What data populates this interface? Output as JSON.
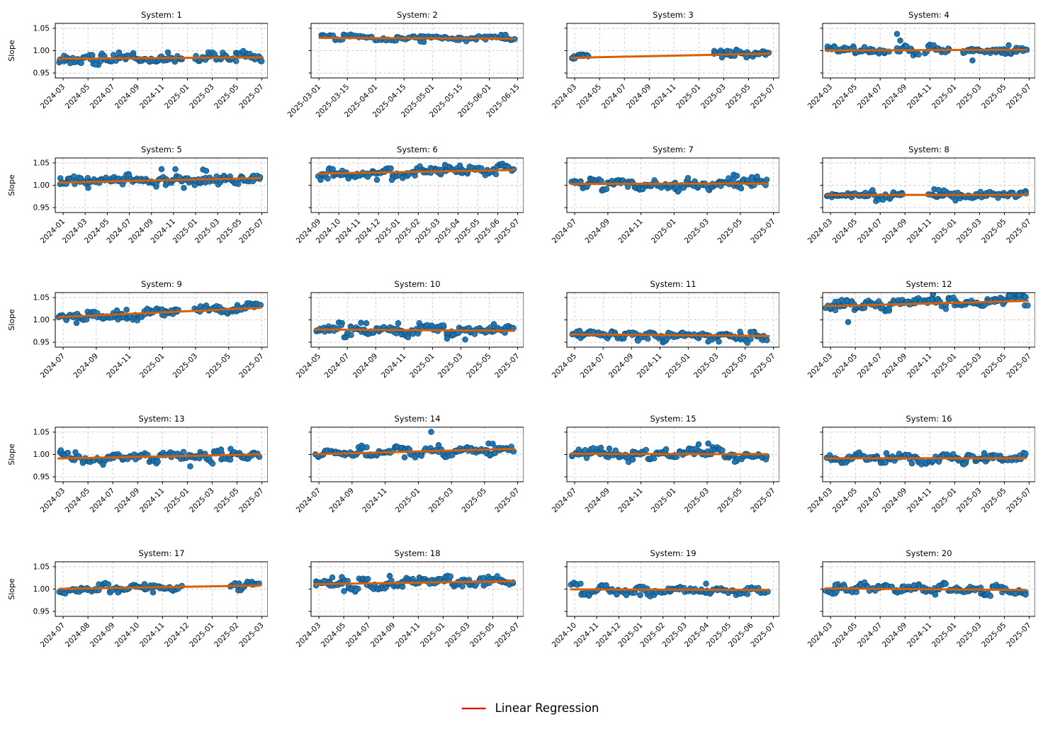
{
  "figure": {
    "ylabel": "Slope",
    "y_ticks": [
      0.95,
      1.0,
      1.05
    ],
    "ylim": [
      0.939,
      1.061
    ],
    "grid": true,
    "colors": {
      "scatter_fill": "#2077b4",
      "scatter_edge": "#0e4a73",
      "regression_line": "#d95f02",
      "legend_line": "#e50000",
      "grid_line": "#c9c9c9",
      "axis": "#000000",
      "text": "#000000",
      "background": "#ffffff"
    }
  },
  "legend": {
    "label": "Linear Regression"
  },
  "chart_data": [
    {
      "type": "scatter",
      "title": "System: 1",
      "x_ticks": [
        "2024-03",
        "2024-05",
        "2024-07",
        "2024-09",
        "2024-11",
        "2025-01",
        "2025-03",
        "2025-05",
        "2025-07"
      ],
      "regression": {
        "x0": 0.015,
        "y0": 0.982,
        "x1": 0.975,
        "y1": 0.985
      },
      "scatter": {
        "n": 150,
        "std": 0.0055,
        "segments": [
          [
            0.015,
            0.6
          ],
          [
            0.655,
            0.975
          ]
        ],
        "outliers": [
          [
            0.3,
            0.996
          ],
          [
            0.53,
            0.996
          ],
          [
            0.07,
            0.972
          ],
          [
            0.19,
            0.969
          ]
        ]
      }
    },
    {
      "type": "scatter",
      "title": "System: 2",
      "x_ticks": [
        "2025-03-01",
        "2025-03-15",
        "2025-04-01",
        "2025-04-15",
        "2025-05-01",
        "2025-05-15",
        "2025-06-01",
        "2025-06-15"
      ],
      "regression": {
        "x0": 0.04,
        "y0": 1.0285,
        "x1": 0.955,
        "y1": 1.027
      },
      "scatter": {
        "n": 95,
        "std": 0.003,
        "segments": [
          [
            0.04,
            0.965
          ]
        ],
        "outliers": [
          [
            0.895,
            1.0355
          ],
          [
            0.915,
            1.0355
          ],
          [
            0.515,
            1.0205
          ],
          [
            0.53,
            1.0195
          ]
        ]
      }
    },
    {
      "type": "scatter",
      "title": "System: 3",
      "x_ticks": [
        "2024-03",
        "2024-05",
        "2024-07",
        "2024-09",
        "2024-11",
        "2025-01",
        "2025-03",
        "2025-05",
        "2025-07"
      ],
      "regression": {
        "x0": 0.02,
        "y0": 0.984,
        "x1": 0.955,
        "y1": 0.9935
      },
      "scatter": {
        "n": 58,
        "std": 0.0035,
        "segments": [
          [
            0.02,
            0.105
          ],
          [
            0.69,
            0.955
          ]
        ],
        "outliers": [
          [
            0.755,
            0.9995
          ],
          [
            0.77,
            0.998
          ],
          [
            0.73,
            0.985
          ],
          [
            0.845,
            0.985
          ]
        ]
      }
    },
    {
      "type": "scatter",
      "title": "System: 4",
      "x_ticks": [
        "2024-03",
        "2024-05",
        "2024-07",
        "2024-09",
        "2024-11",
        "2025-01",
        "2025-03",
        "2025-05",
        "2025-07"
      ],
      "regression": {
        "x0": 0.015,
        "y0": 1.0005,
        "x1": 0.955,
        "y1": 1.002
      },
      "scatter": {
        "n": 125,
        "std": 0.005,
        "segments": [
          [
            0.015,
            0.31
          ],
          [
            0.345,
            0.45
          ],
          [
            0.48,
            0.6
          ],
          [
            0.655,
            0.965
          ]
        ],
        "outliers": [
          [
            0.35,
            1.0375
          ],
          [
            0.365,
            1.0225
          ],
          [
            0.705,
            0.978
          ],
          [
            0.875,
            1.012
          ]
        ]
      }
    },
    {
      "type": "scatter",
      "title": "System: 5",
      "x_ticks": [
        "2024-01",
        "2024-03",
        "2024-05",
        "2024-07",
        "2024-09",
        "2024-11",
        "2025-01",
        "2025-03",
        "2025-05",
        "2025-07"
      ],
      "regression": {
        "x0": 0.02,
        "y0": 1.006,
        "x1": 0.965,
        "y1": 1.016
      },
      "scatter": {
        "n": 155,
        "std": 0.0062,
        "segments": [
          [
            0.02,
            0.965
          ]
        ],
        "outliers": [
          [
            0.5,
            1.036
          ],
          [
            0.565,
            1.036
          ],
          [
            0.695,
            1.035
          ],
          [
            0.71,
            1.032
          ],
          [
            0.155,
            0.994
          ],
          [
            0.605,
            0.994
          ]
        ]
      }
    },
    {
      "type": "scatter",
      "title": "System: 6",
      "x_ticks": [
        "2024-09",
        "2024-10",
        "2024-11",
        "2024-12",
        "2025-01",
        "2025-02",
        "2025-03",
        "2025-04",
        "2025-05",
        "2025-06",
        "2025-07"
      ],
      "regression": {
        "x0": 0.035,
        "y0": 1.026,
        "x1": 0.955,
        "y1": 1.034
      },
      "scatter": {
        "n": 150,
        "std": 0.0055,
        "segments": [
          [
            0.035,
            0.955
          ]
        ],
        "outliers": [
          [
            0.045,
            1.012
          ],
          [
            0.63,
            1.0455
          ],
          [
            0.7,
            1.044
          ],
          [
            0.31,
            1.012
          ],
          [
            0.38,
            1.012
          ]
        ]
      }
    },
    {
      "type": "scatter",
      "title": "System: 7",
      "x_ticks": [
        "2024-07",
        "2024-09",
        "2024-11",
        "2025-01",
        "2025-03",
        "2025-05",
        "2025-07"
      ],
      "regression": {
        "x0": 0.02,
        "y0": 1.003,
        "x1": 0.945,
        "y1": 1.004
      },
      "scatter": {
        "n": 150,
        "std": 0.0055,
        "segments": [
          [
            0.02,
            0.945
          ]
        ],
        "outliers": [
          [
            0.785,
            1.0235
          ],
          [
            0.8,
            1.021
          ],
          [
            0.87,
            1.018
          ],
          [
            0.895,
            1.0195
          ],
          [
            0.57,
            1.016
          ],
          [
            0.82,
            0.993
          ]
        ]
      }
    },
    {
      "type": "scatter",
      "title": "System: 8",
      "x_ticks": [
        "2024-03",
        "2024-05",
        "2024-07",
        "2024-09",
        "2024-11",
        "2025-01",
        "2025-03",
        "2025-05",
        "2025-07"
      ],
      "regression": {
        "x0": 0.02,
        "y0": 0.9785,
        "x1": 0.965,
        "y1": 0.9785
      },
      "scatter": {
        "n": 130,
        "std": 0.0048,
        "segments": [
          [
            0.02,
            0.385
          ],
          [
            0.5,
            0.965
          ]
        ],
        "outliers": [
          [
            0.525,
            0.991
          ],
          [
            0.545,
            0.9895
          ],
          [
            0.57,
            0.9885
          ],
          [
            0.625,
            0.966
          ],
          [
            0.235,
            0.989
          ]
        ]
      }
    },
    {
      "type": "scatter",
      "title": "System: 9",
      "x_ticks": [
        "2024-07",
        "2024-09",
        "2024-11",
        "2025-01",
        "2025-03",
        "2025-05",
        "2025-07"
      ],
      "regression": {
        "x0": 0.015,
        "y0": 1.006,
        "x1": 0.965,
        "y1": 1.027
      },
      "scatter": {
        "n": 145,
        "std": 0.0048,
        "segments": [
          [
            0.015,
            0.585
          ],
          [
            0.655,
            0.965
          ]
        ],
        "outliers": [
          [
            0.29,
            1.021
          ],
          [
            0.335,
            1.0225
          ],
          [
            0.435,
            1.021
          ],
          [
            0.545,
            1.021
          ],
          [
            0.1,
            0.993
          ]
        ]
      }
    },
    {
      "type": "scatter",
      "title": "System: 10",
      "x_ticks": [
        "2024-05",
        "2024-07",
        "2024-09",
        "2024-11",
        "2025-01",
        "2025-03",
        "2025-05",
        "2025-07"
      ],
      "regression": {
        "x0": 0.02,
        "y0": 0.9785,
        "x1": 0.955,
        "y1": 0.9755
      },
      "scatter": {
        "n": 150,
        "std": 0.0055,
        "segments": [
          [
            0.02,
            0.955
          ]
        ],
        "outliers": [
          [
            0.235,
            0.9935
          ],
          [
            0.26,
            0.9925
          ],
          [
            0.41,
            0.9925
          ],
          [
            0.64,
            0.958
          ],
          [
            0.725,
            0.956
          ],
          [
            0.86,
            0.9905
          ]
        ]
      }
    },
    {
      "type": "scatter",
      "title": "System: 11",
      "x_ticks": [
        "2024-05",
        "2024-07",
        "2024-09",
        "2024-11",
        "2025-01",
        "2025-03",
        "2025-05",
        "2025-07"
      ],
      "regression": {
        "x0": 0.02,
        "y0": 0.9675,
        "x1": 0.95,
        "y1": 0.964
      },
      "scatter": {
        "n": 140,
        "std": 0.0048,
        "segments": [
          [
            0.02,
            0.95
          ]
        ],
        "outliers": [
          [
            0.06,
            0.9755
          ],
          [
            0.665,
            0.9515
          ],
          [
            0.715,
            0.9515
          ],
          [
            0.335,
            0.9535
          ],
          [
            0.815,
            0.9735
          ],
          [
            0.875,
            0.972
          ]
        ]
      }
    },
    {
      "type": "scatter",
      "title": "System: 12",
      "x_ticks": [
        "2024-03",
        "2024-05",
        "2024-07",
        "2024-09",
        "2024-11",
        "2025-01",
        "2025-03",
        "2025-05",
        "2025-07"
      ],
      "regression": {
        "x0": 0.015,
        "y0": 1.0305,
        "x1": 0.965,
        "y1": 1.0425
      },
      "scatter": {
        "n": 150,
        "std": 0.0055,
        "segments": [
          [
            0.015,
            0.965
          ]
        ],
        "outliers": [
          [
            0.52,
            1.058
          ],
          [
            0.88,
            1.054
          ],
          [
            0.925,
            1.0565
          ],
          [
            0.955,
            1.051
          ],
          [
            0.09,
            1.0445
          ],
          [
            0.12,
            0.995
          ]
        ]
      }
    },
    {
      "type": "scatter",
      "title": "System: 13",
      "x_ticks": [
        "2024-03",
        "2024-05",
        "2024-07",
        "2024-09",
        "2024-11",
        "2025-01",
        "2025-03",
        "2025-05",
        "2025-07"
      ],
      "regression": {
        "x0": 0.015,
        "y0": 0.991,
        "x1": 0.965,
        "y1": 1.0
      },
      "scatter": {
        "n": 145,
        "std": 0.0048,
        "segments": [
          [
            0.015,
            0.965
          ]
        ],
        "outliers": [
          [
            0.635,
            0.9735
          ],
          [
            0.225,
            0.977
          ],
          [
            0.78,
            1.011
          ],
          [
            0.825,
            1.0125
          ],
          [
            0.095,
            1.005
          ]
        ]
      }
    },
    {
      "type": "scatter",
      "title": "System: 14",
      "x_ticks": [
        "2024-07",
        "2024-09",
        "2024-11",
        "2025-01",
        "2025-03",
        "2025-05",
        "2025-07"
      ],
      "regression": {
        "x0": 0.02,
        "y0": 1.0005,
        "x1": 0.955,
        "y1": 1.0125
      },
      "scatter": {
        "n": 140,
        "std": 0.0045,
        "segments": [
          [
            0.02,
            0.955
          ]
        ],
        "outliers": [
          [
            0.565,
            1.0505
          ],
          [
            0.6,
            1.021
          ],
          [
            0.835,
            1.0245
          ],
          [
            0.855,
            1.024
          ],
          [
            0.44,
            0.9935
          ],
          [
            0.49,
            0.9935
          ]
        ]
      }
    },
    {
      "type": "scatter",
      "title": "System: 15",
      "x_ticks": [
        "2024-07",
        "2024-09",
        "2024-11",
        "2025-01",
        "2025-03",
        "2025-05",
        "2025-07"
      ],
      "regression": {
        "x0": 0.02,
        "y0": 1.0015,
        "x1": 0.945,
        "y1": 1.0005
      },
      "scatter": {
        "n": 140,
        "std": 0.0055,
        "segments": [
          [
            0.02,
            0.945
          ]
        ],
        "outliers": [
          [
            0.62,
            1.0225
          ],
          [
            0.665,
            1.0245
          ],
          [
            0.16,
            1.015
          ],
          [
            0.2,
            1.013
          ],
          [
            0.79,
            0.9835
          ],
          [
            0.31,
            0.9885
          ]
        ]
      }
    },
    {
      "type": "scatter",
      "title": "System: 16",
      "x_ticks": [
        "2024-03",
        "2024-05",
        "2024-07",
        "2024-09",
        "2024-11",
        "2025-01",
        "2025-03",
        "2025-05",
        "2025-07"
      ],
      "regression": {
        "x0": 0.015,
        "y0": 0.9915,
        "x1": 0.955,
        "y1": 0.9915
      },
      "scatter": {
        "n": 150,
        "std": 0.0048,
        "segments": [
          [
            0.015,
            0.955
          ]
        ],
        "outliers": [
          [
            0.3,
            1.003
          ],
          [
            0.76,
            1.003
          ],
          [
            0.665,
            0.978
          ],
          [
            0.42,
            0.98
          ]
        ]
      }
    },
    {
      "type": "scatter",
      "title": "System: 17",
      "x_ticks": [
        "2024-07",
        "2024-08",
        "2024-09",
        "2024-10",
        "2024-11",
        "2024-12",
        "2025-01",
        "2025-02",
        "2025-03"
      ],
      "regression": {
        "x0": 0.02,
        "y0": 1.0005,
        "x1": 0.965,
        "y1": 1.008
      },
      "scatter": {
        "n": 100,
        "std": 0.0042,
        "segments": [
          [
            0.02,
            0.595
          ],
          [
            0.825,
            0.965
          ]
        ],
        "outliers": [
          [
            0.845,
            1.013
          ],
          [
            0.865,
            1.0125
          ],
          [
            0.42,
            1.011
          ],
          [
            0.295,
            0.9925
          ],
          [
            0.46,
            0.9925
          ]
        ]
      }
    },
    {
      "type": "scatter",
      "title": "System: 18",
      "x_ticks": [
        "2024-03",
        "2024-05",
        "2024-07",
        "2024-09",
        "2024-11",
        "2025-01",
        "2025-03",
        "2025-05",
        "2025-07"
      ],
      "regression": {
        "x0": 0.015,
        "y0": 1.011,
        "x1": 0.955,
        "y1": 1.0175
      },
      "scatter": {
        "n": 150,
        "std": 0.0055,
        "segments": [
          [
            0.015,
            0.955
          ]
        ],
        "outliers": [
          [
            0.1,
            1.026
          ],
          [
            0.145,
            1.027
          ],
          [
            0.37,
            1.0295
          ],
          [
            0.155,
            0.9955
          ],
          [
            0.21,
            0.9975
          ]
        ]
      }
    },
    {
      "type": "scatter",
      "title": "System: 19",
      "x_ticks": [
        "2024-10",
        "2024-11",
        "2024-12",
        "2025-01",
        "2025-02",
        "2025-03",
        "2025-04",
        "2025-05",
        "2025-06",
        "2025-07"
      ],
      "regression": {
        "x0": 0.02,
        "y0": 0.9995,
        "x1": 0.945,
        "y1": 0.998
      },
      "scatter": {
        "n": 130,
        "std": 0.0048,
        "segments": [
          [
            0.02,
            0.945
          ]
        ],
        "outliers": [
          [
            0.185,
            1.0085
          ],
          [
            0.655,
            1.012
          ],
          [
            0.235,
            0.988
          ],
          [
            0.28,
            0.9865
          ],
          [
            0.345,
            0.9865
          ]
        ]
      }
    },
    {
      "type": "scatter",
      "title": "System: 20",
      "x_ticks": [
        "2024-03",
        "2024-05",
        "2024-07",
        "2024-09",
        "2024-11",
        "2025-01",
        "2025-03",
        "2025-05",
        "2025-07"
      ],
      "regression": {
        "x0": 0.015,
        "y0": 1.0015,
        "x1": 0.955,
        "y1": 0.998
      },
      "scatter": {
        "n": 150,
        "std": 0.0048,
        "segments": [
          [
            0.015,
            0.955
          ]
        ],
        "outliers": [
          [
            0.06,
            1.0095
          ],
          [
            0.43,
            1.0085
          ],
          [
            0.53,
            0.9875
          ],
          [
            0.905,
            0.9895
          ],
          [
            0.955,
            0.9875
          ]
        ]
      }
    }
  ]
}
